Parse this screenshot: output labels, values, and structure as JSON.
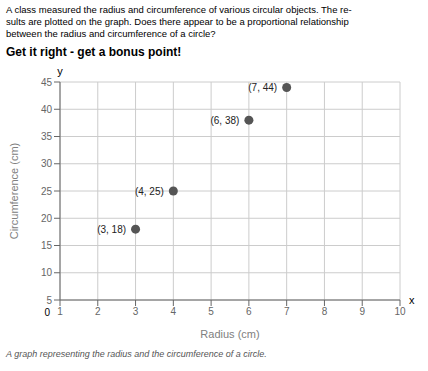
{
  "chart_data": {
    "type": "scatter",
    "title": "A class measured the radius and circumference of various circular objects. The re-\nsults are plotted on the graph. Does there appear to be a proportional relationship\nbetween the radius and circumference of a circle?",
    "subtitle": "Get it right - get a bonus point!",
    "caption": "A graph representing the radius and the circumference of a circle.",
    "x_label": "Radius (cm)",
    "y_label": "Circumference (cm)",
    "x": [
      3,
      4,
      6,
      7
    ],
    "values": [
      18,
      25,
      38,
      44
    ],
    "value_labels": [
      "(3, 18)",
      "(4, 25)",
      "(6, 38)",
      "(7, 44)"
    ],
    "data_labels": true,
    "color": "#555555",
    "xlim": [
      1,
      10
    ],
    "ylim": [
      5,
      45
    ],
    "xticks": [
      1,
      2,
      3,
      4,
      5,
      6,
      7,
      8,
      9,
      10
    ],
    "yticks": [
      5,
      10,
      15,
      20,
      25,
      30,
      35,
      40,
      45
    ],
    "grid": true,
    "annotations": [
      "x",
      "y",
      "0"
    ]
  }
}
